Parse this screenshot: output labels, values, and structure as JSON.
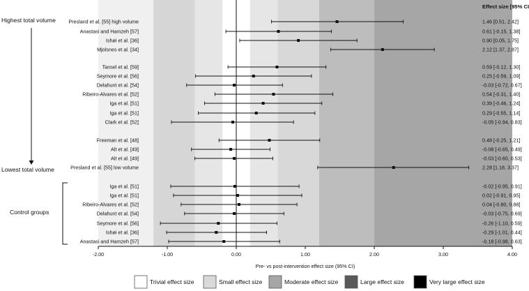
{
  "chart_data": {
    "type": "forest",
    "xlabel": "Pre- vs post-intervention effect size (95% CI)",
    "xlim": [
      -2.0,
      4.0
    ],
    "xticks": [
      -2,
      -1,
      0,
      1,
      2,
      3,
      4
    ],
    "xtick_labels": [
      "-2.00",
      "-1.00",
      "0.00",
      "1.00",
      "2.00",
      "3.00",
      "4.00"
    ],
    "effect_header": "Effect size [95% CI]",
    "bands": [
      {
        "key": "very_large",
        "from": -2.0,
        "to": -1.2,
        "color": "#f0f0f0"
      },
      {
        "key": "large",
        "from": -1.2,
        "to": -0.6,
        "color": "#d6d6d6"
      },
      {
        "key": "moderate",
        "from": -0.6,
        "to": -0.2,
        "color": "#e6e6e6"
      },
      {
        "key": "trivial",
        "from": -0.2,
        "to": 0.2,
        "color": "#ffffff"
      },
      {
        "key": "small",
        "from": 0.2,
        "to": 0.6,
        "color": "#e6e6e6"
      },
      {
        "key": "moderate2",
        "from": 0.6,
        "to": 1.2,
        "color": "#d8d8d8"
      },
      {
        "key": "large2",
        "from": 1.2,
        "to": 2.0,
        "color": "#bdbdbd"
      },
      {
        "key": "very_large2",
        "from": 2.0,
        "to": 4.0,
        "color": "#a6a6a6"
      }
    ],
    "group_labels": {
      "highest": "Highest total volume",
      "lowest": "Lowest total volume",
      "control": "Control groups"
    },
    "rows": [
      {
        "study": "Presland et al. [55] high volume",
        "es": 1.46,
        "lo": 0.51,
        "hi": 2.42,
        "text": "1.46 [0.51, 2.42]"
      },
      {
        "study": "Anastasi and Hamzeh [57]",
        "es": 0.61,
        "lo": -0.15,
        "hi": 1.38,
        "text": "0.61 [-0.15, 1.38]"
      },
      {
        "study": "Ishøi et al. [36]",
        "es": 0.9,
        "lo": 0.05,
        "hi": 1.75,
        "text": "0.90 [0.05, 1.75]"
      },
      {
        "study": "Mjolsnes et al. [34]",
        "es": 2.12,
        "lo": 1.37,
        "hi": 2.87,
        "text": "2.12 [1.37, 2.87]"
      },
      {
        "study": "Tansel et al. [59]",
        "es": 0.59,
        "lo": -0.12,
        "hi": 1.3,
        "text": "0.59 [-0.12, 1.30]"
      },
      {
        "study": "Seymore et al. [56]",
        "es": 0.25,
        "lo": -0.59,
        "hi": 1.09,
        "text": "0.25 [-0.59, 1.09]"
      },
      {
        "study": "Delahunt et al. [54]",
        "es": -0.03,
        "lo": -0.72,
        "hi": 0.67,
        "text": "-0.03 [-0.72, 0.67]"
      },
      {
        "study": "Ribeiro-Alvares et al. [52]",
        "es": 0.54,
        "lo": -0.31,
        "hi": 1.4,
        "text": "0.54 [-0.31, 1.40]"
      },
      {
        "study": "Iga et al. [51]",
        "es": 0.39,
        "lo": -0.46,
        "hi": 1.24,
        "text": "0.39 [-0.46, 1.24]"
      },
      {
        "study": "Iga et al. [51]",
        "es": 0.29,
        "lo": -0.55,
        "hi": 1.14,
        "text": "0.29 [-0.55, 1.14]"
      },
      {
        "study": "Clark et al. [52]",
        "es": -0.05,
        "lo": -0.94,
        "hi": 0.83,
        "text": "-0.05 [-0.94, 0.83]"
      },
      {
        "study": "Freeman et al. [48]",
        "es": 0.48,
        "lo": -0.25,
        "hi": 1.21,
        "text": "0.48 [-0.25, 1.21]"
      },
      {
        "study": "Alt et al. [49]",
        "es": -0.08,
        "lo": -0.65,
        "hi": 0.49,
        "text": "-0.08 [-0.65, 0.49]"
      },
      {
        "study": "Alt et al. [49]",
        "es": -0.03,
        "lo": -0.6,
        "hi": 0.53,
        "text": "-0.03 [-0.60, 0.53]"
      },
      {
        "study": "Presland et al. [55] low volume",
        "es": 2.28,
        "lo": 1.18,
        "hi": 3.37,
        "text": "2.28 [1.18, 3.37]"
      },
      {
        "study": "Iga et al. [51]",
        "es": -0.02,
        "lo": -0.95,
        "hi": 0.91,
        "text": "-0.02 [-0.95, 0.91]"
      },
      {
        "study": "Iga et al. [51]",
        "es": 0.02,
        "lo": -0.91,
        "hi": 0.95,
        "text": "0.02 [-0.91, 0.95]"
      },
      {
        "study": "Ribeiro-Alvares et al. [52]",
        "es": 0.04,
        "lo": -0.8,
        "hi": 0.88,
        "text": "0.04 [-0.80, 0.88]"
      },
      {
        "study": "Delahunt et al. [54]",
        "es": -0.03,
        "lo": -0.75,
        "hi": 0.69,
        "text": "-0.03 [-0.75, 0.69]"
      },
      {
        "study": "Seymore et al. [56]",
        "es": -0.26,
        "lo": -1.1,
        "hi": 0.59,
        "text": "-0.26 [-1.10, 0.59]"
      },
      {
        "study": "Ishøi et al. [36]",
        "es": -0.29,
        "lo": -1.01,
        "hi": 0.44,
        "text": "-0.29 [-1.01, 0.44]"
      },
      {
        "study": "Anastasi and Hamzeh [57]",
        "es": -0.18,
        "lo": -0.98,
        "hi": 0.63,
        "text": "-0.18 [-0.98, 0.63]"
      }
    ],
    "legend": [
      {
        "label": "Trivial effect size",
        "color": "#ffffff"
      },
      {
        "label": "Small effect size",
        "color": "#d9d9d9"
      },
      {
        "label": "Moderate effect size",
        "color": "#a6a6a6"
      },
      {
        "label": "Large effect size",
        "color": "#595959"
      },
      {
        "label": "Very large effect size",
        "color": "#000000"
      }
    ]
  }
}
